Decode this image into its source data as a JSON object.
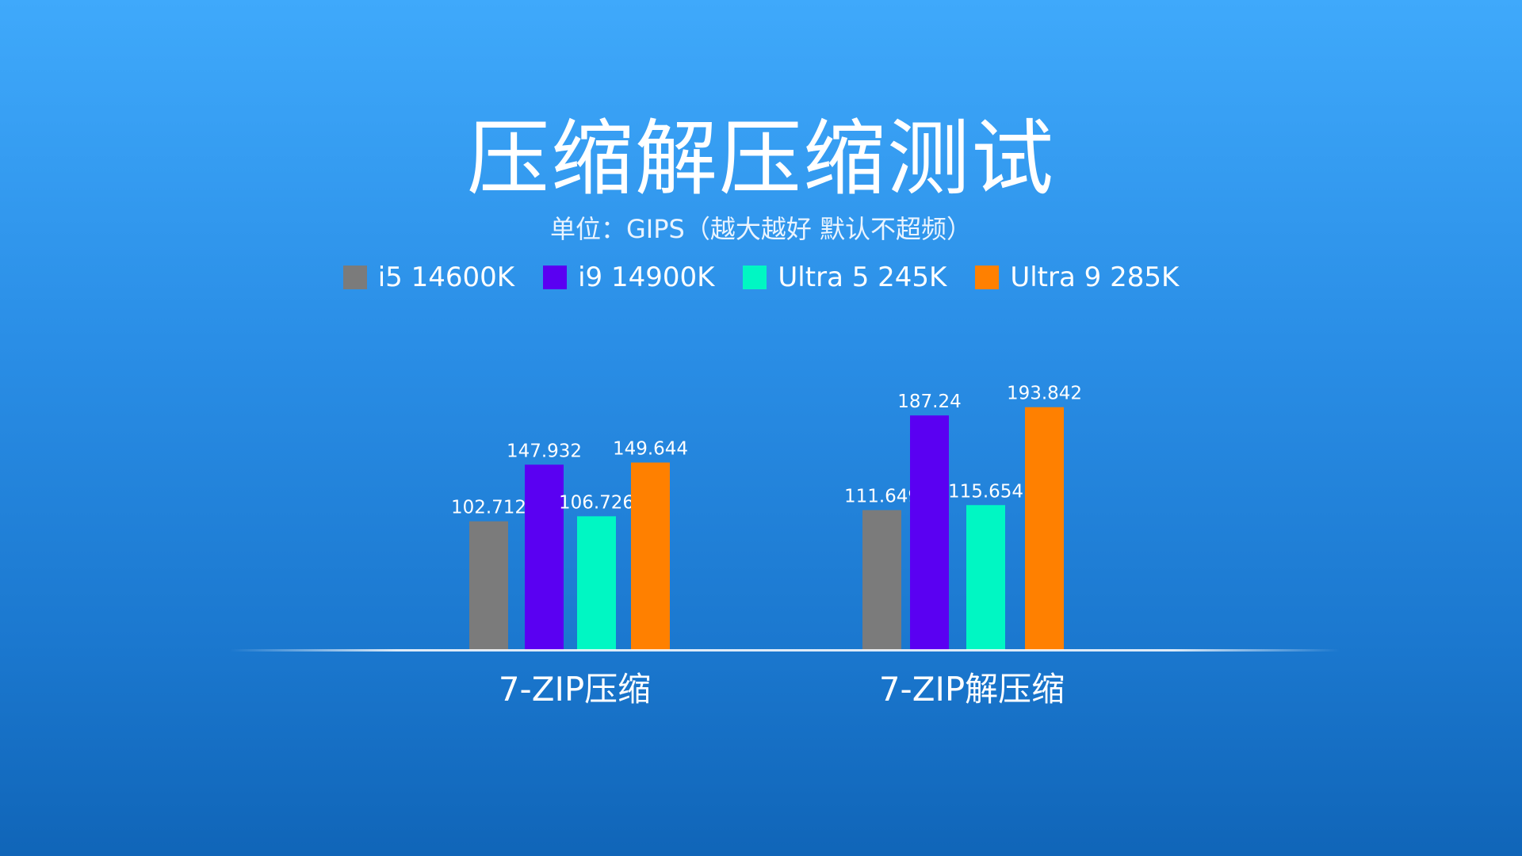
{
  "title": "压缩解压缩测试",
  "subtitle": "单位：GIPS（越大越好 默认不超频）",
  "colors": {
    "i5_14600k": "#7b7b7b",
    "i9_14900k": "#5a00f2",
    "ultra5_245k": "#00f7c3",
    "ultra9_285k": "#ff8000"
  },
  "legend": [
    {
      "label": "i5 14600K",
      "color": "#7b7b7b"
    },
    {
      "label": "i9 14900K",
      "color": "#5a00f2"
    },
    {
      "label": "Ultra 5 245K",
      "color": "#00f7c3"
    },
    {
      "label": "Ultra 9 285K",
      "color": "#ff8000"
    }
  ],
  "chart_data": {
    "type": "bar",
    "title": "压缩解压缩测试",
    "subtitle": "单位：GIPS（越大越好 默认不超频）",
    "categories": [
      "7-ZIP压缩",
      "7-ZIP解压缩"
    ],
    "series": [
      {
        "name": "i5 14600K",
        "color": "#7b7b7b",
        "values": [
          102.712,
          111.649
        ],
        "labels": [
          "102.712",
          "111.649"
        ]
      },
      {
        "name": "i9 14900K",
        "color": "#5a00f2",
        "values": [
          147.932,
          187.24
        ],
        "labels": [
          "147.932",
          "187.24"
        ]
      },
      {
        "name": "Ultra 5 245K",
        "color": "#00f7c3",
        "values": [
          106.726,
          115.654
        ],
        "labels": [
          "106.726",
          "115.654"
        ]
      },
      {
        "name": "Ultra 9 285K",
        "color": "#ff8000",
        "values": [
          149.644,
          193.842
        ],
        "labels": [
          "149.644",
          "193.842"
        ]
      }
    ],
    "ylim": [
      0,
      200
    ],
    "grid": false,
    "legend_position": "top-center",
    "data_labels": true
  }
}
